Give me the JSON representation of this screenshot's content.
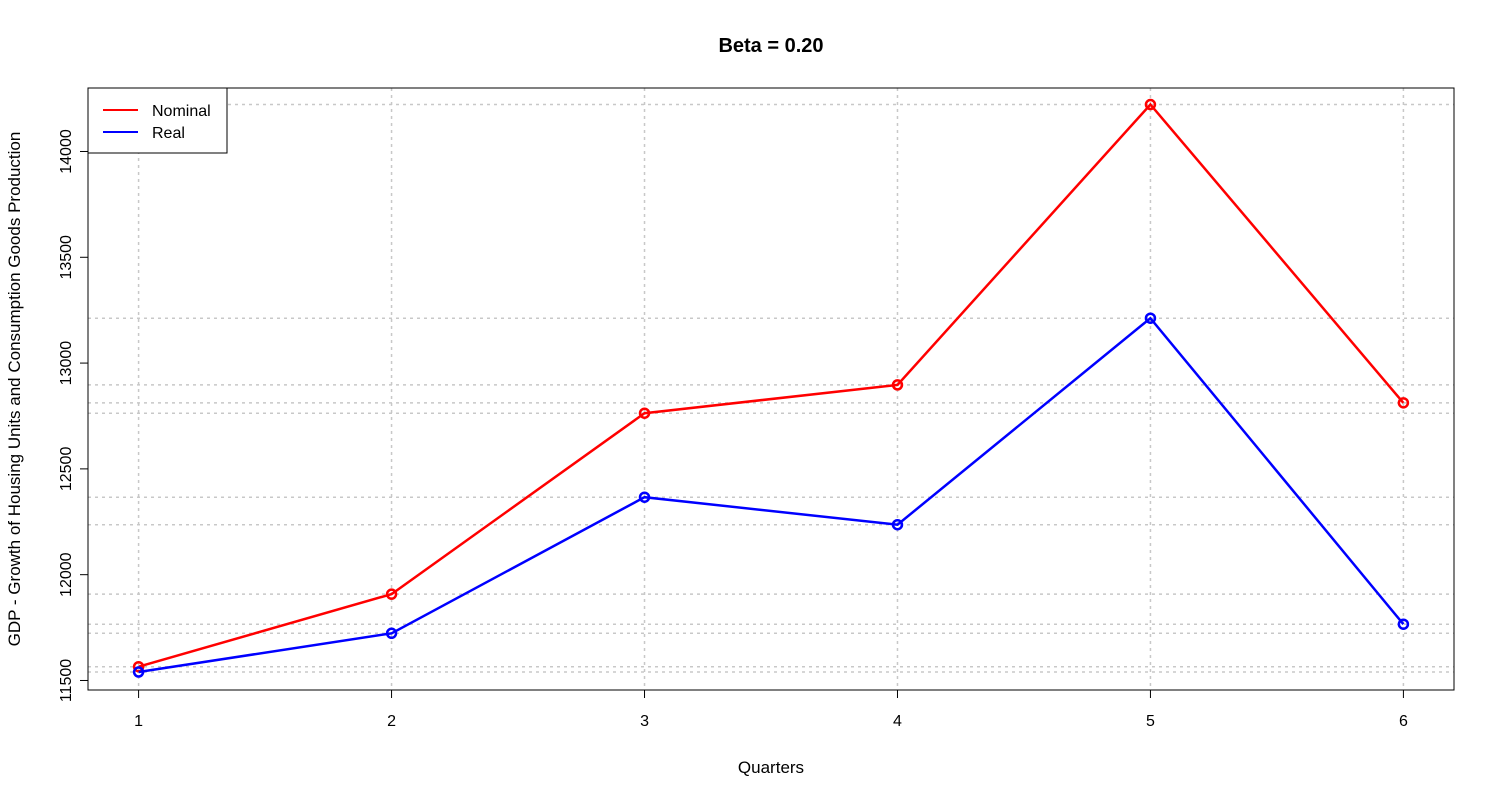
{
  "chart_data": {
    "type": "line",
    "title": "Beta = 0.20",
    "xlabel": "Quarters",
    "ylabel": "GDP - Growth of Housing Units and Consumption Goods Production",
    "x": [
      1,
      2,
      3,
      4,
      5,
      6
    ],
    "xlim": [
      0.8,
      6.2
    ],
    "ylim": [
      11455,
      14300
    ],
    "yticks": [
      11500,
      12000,
      12500,
      13000,
      13500,
      14000
    ],
    "grid": "dotted at x values and at each data y value",
    "legend_position": "top-left",
    "series": [
      {
        "name": "Nominal",
        "color": "#ff0000",
        "values": [
          11565,
          11908,
          12763,
          12897,
          14222,
          12812
        ]
      },
      {
        "name": "Real",
        "color": "#0000ff",
        "values": [
          11540,
          11723,
          12366,
          12236,
          13212,
          11766
        ]
      }
    ]
  }
}
